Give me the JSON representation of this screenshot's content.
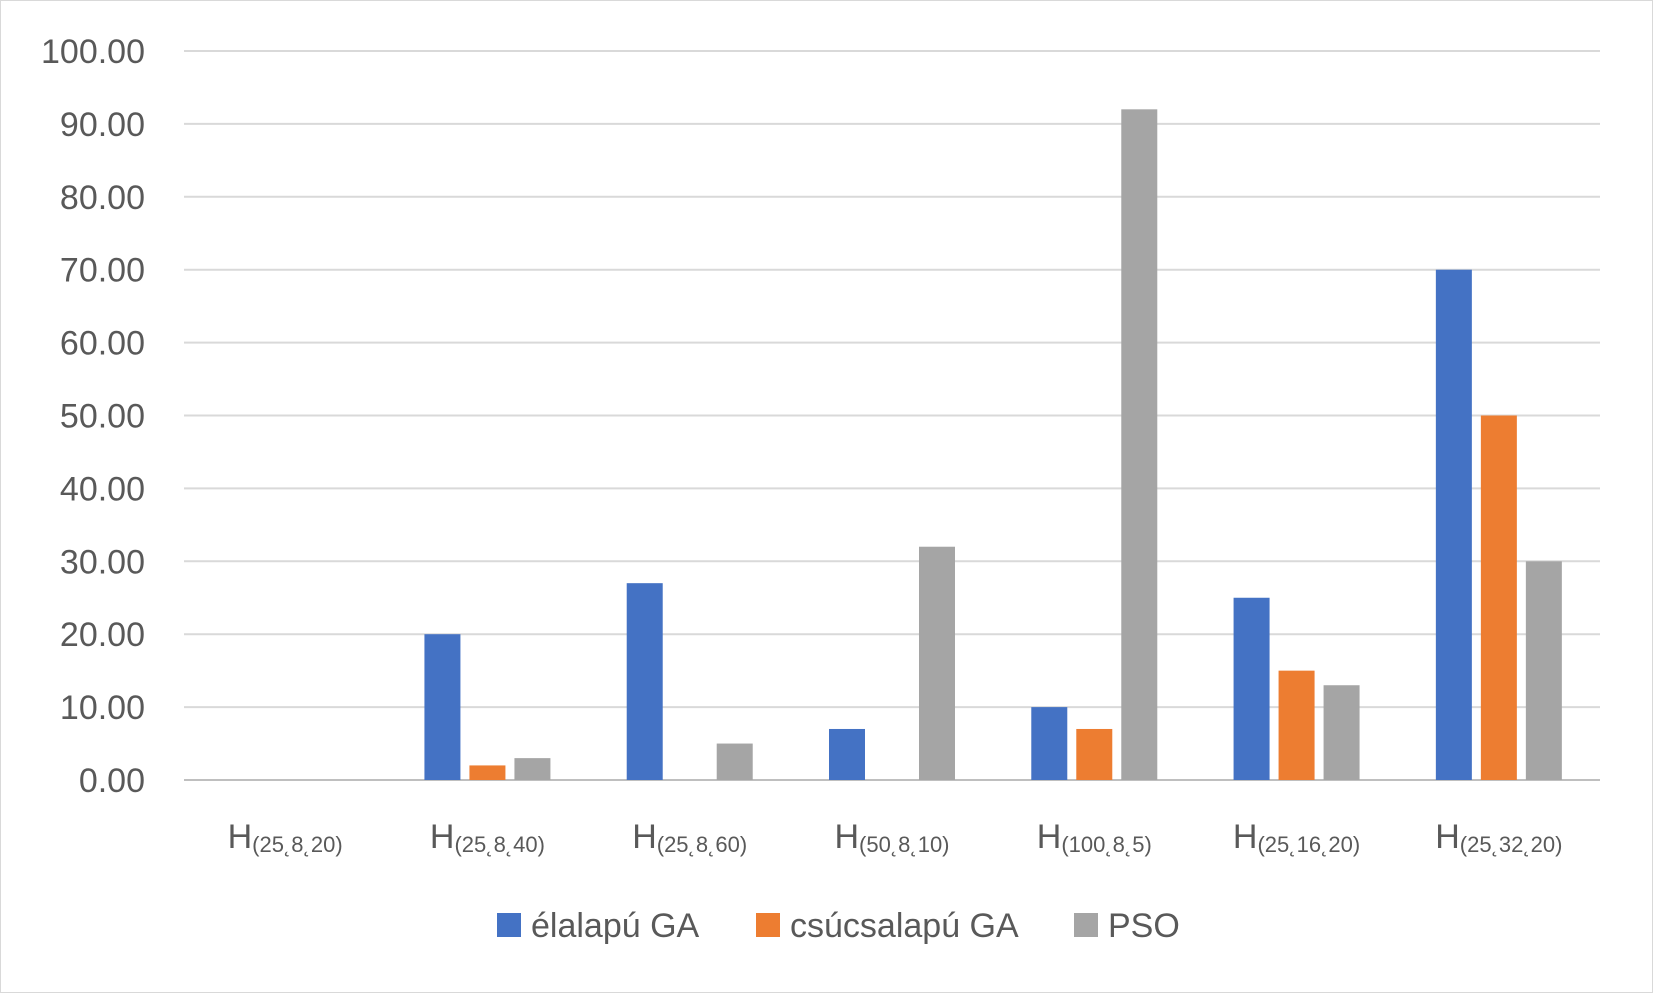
{
  "chart_data": {
    "type": "bar",
    "categories": [
      {
        "main": "H",
        "sub": "(25˛8˛20)"
      },
      {
        "main": "H",
        "sub": "(25˛8˛40)"
      },
      {
        "main": "H",
        "sub": "(25˛8˛60)"
      },
      {
        "main": "H",
        "sub": "(50˛8˛10)"
      },
      {
        "main": "H",
        "sub": "(100˛8˛5)"
      },
      {
        "main": "H",
        "sub": "(25˛16˛20)"
      },
      {
        "main": "H",
        "sub": "(25˛32˛20)"
      }
    ],
    "series": [
      {
        "name": "élalapú GA",
        "color": "#4472c4",
        "values": [
          0,
          20,
          27,
          7,
          10,
          25,
          70
        ]
      },
      {
        "name": "csúcsalapú GA",
        "color": "#ed7d31",
        "values": [
          0,
          2,
          0,
          0,
          7,
          15,
          50
        ]
      },
      {
        "name": "PSO",
        "color": "#a5a5a5",
        "values": [
          0,
          3,
          5,
          32,
          92,
          13,
          30
        ]
      }
    ],
    "ylim": [
      0,
      100
    ],
    "yticks": [
      "0.00",
      "10.00",
      "20.00",
      "30.00",
      "40.00",
      "50.00",
      "60.00",
      "70.00",
      "80.00",
      "90.00",
      "100.00"
    ],
    "grid": true,
    "legend": "bottom"
  }
}
